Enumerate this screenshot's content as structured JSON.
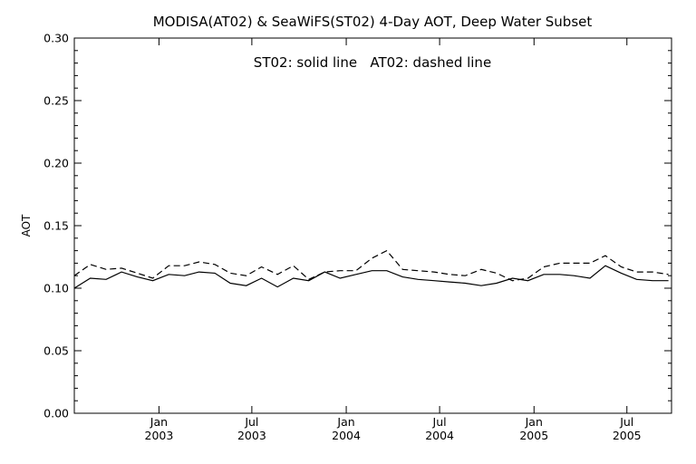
{
  "chart_data": {
    "type": "line",
    "title": "MODISA(AT02) & SeaWiFS(ST02) 4-Day AOT, Deep Water Subset",
    "annotation": "ST02: solid line   AT02: dashed line",
    "ylabel": "AOT",
    "xlabel": "",
    "ylim": [
      0.0,
      0.3
    ],
    "xlim": [
      "2002-07-20",
      "2005-09-26"
    ],
    "grid": false,
    "legend": "none",
    "y_ticks": [
      "0.00",
      "0.05",
      "0.10",
      "0.15",
      "0.20",
      "0.25",
      "0.30"
    ],
    "x_ticks": [
      {
        "date": "2003-01-01",
        "month": "Jan",
        "year": "2003"
      },
      {
        "date": "2003-07-01",
        "month": "Jul",
        "year": "2003"
      },
      {
        "date": "2004-01-01",
        "month": "Jan",
        "year": "2004"
      },
      {
        "date": "2004-07-01",
        "month": "Jul",
        "year": "2004"
      },
      {
        "date": "2005-01-01",
        "month": "Jan",
        "year": "2005"
      },
      {
        "date": "2005-07-01",
        "month": "Jul",
        "year": "2005"
      }
    ],
    "series": [
      {
        "name": "ST02",
        "style": "solid",
        "x": [
          "2002-07-20",
          "2002-08-20",
          "2002-09-20",
          "2002-10-20",
          "2002-11-20",
          "2002-12-20",
          "2003-01-20",
          "2003-02-20",
          "2003-03-20",
          "2003-04-20",
          "2003-05-20",
          "2003-06-20",
          "2003-07-20",
          "2003-08-20",
          "2003-09-20",
          "2003-10-20",
          "2003-11-20",
          "2003-12-20",
          "2004-01-20",
          "2004-02-20",
          "2004-03-20",
          "2004-04-20",
          "2004-05-20",
          "2004-06-20",
          "2004-07-20",
          "2004-08-20",
          "2004-09-20",
          "2004-10-20",
          "2004-11-20",
          "2004-12-20",
          "2005-01-20",
          "2005-02-20",
          "2005-03-20",
          "2005-04-20",
          "2005-05-20",
          "2005-06-20",
          "2005-07-20",
          "2005-08-20",
          "2005-09-20"
        ],
        "values": [
          0.1,
          0.108,
          0.107,
          0.113,
          0.109,
          0.106,
          0.111,
          0.11,
          0.113,
          0.112,
          0.104,
          0.102,
          0.108,
          0.101,
          0.108,
          0.106,
          0.113,
          0.108,
          0.111,
          0.114,
          0.114,
          0.109,
          0.107,
          0.106,
          0.105,
          0.104,
          0.102,
          0.104,
          0.108,
          0.106,
          0.111,
          0.111,
          0.11,
          0.108,
          0.118,
          0.112,
          0.107,
          0.106,
          0.106
        ]
      },
      {
        "name": "AT02",
        "style": "dashed",
        "x": [
          "2002-07-20",
          "2002-08-20",
          "2002-09-20",
          "2002-10-20",
          "2002-11-20",
          "2002-12-20",
          "2003-01-20",
          "2003-02-20",
          "2003-03-20",
          "2003-04-20",
          "2003-05-20",
          "2003-06-20",
          "2003-07-20",
          "2003-08-20",
          "2003-09-20",
          "2003-10-20",
          "2003-11-20",
          "2003-12-20",
          "2004-01-20",
          "2004-02-20",
          "2004-03-20",
          "2004-04-20",
          "2004-05-20",
          "2004-06-20",
          "2004-07-20",
          "2004-08-20",
          "2004-09-20",
          "2004-10-20",
          "2004-11-20",
          "2004-12-20",
          "2005-01-20",
          "2005-02-20",
          "2005-03-20",
          "2005-04-20",
          "2005-05-20",
          "2005-06-20",
          "2005-07-20",
          "2005-08-20",
          "2005-09-20"
        ],
        "values": [
          0.11,
          0.119,
          0.115,
          0.116,
          0.112,
          0.108,
          0.118,
          0.118,
          0.121,
          0.119,
          0.112,
          0.11,
          0.117,
          0.111,
          0.118,
          0.107,
          0.113,
          0.114,
          0.114,
          0.124,
          0.13,
          0.115,
          0.114,
          0.113,
          0.111,
          0.11,
          0.115,
          0.112,
          0.106,
          0.108,
          0.117,
          0.12,
          0.12,
          0.12,
          0.126,
          0.117,
          0.113,
          0.113,
          0.111
        ]
      }
    ]
  }
}
